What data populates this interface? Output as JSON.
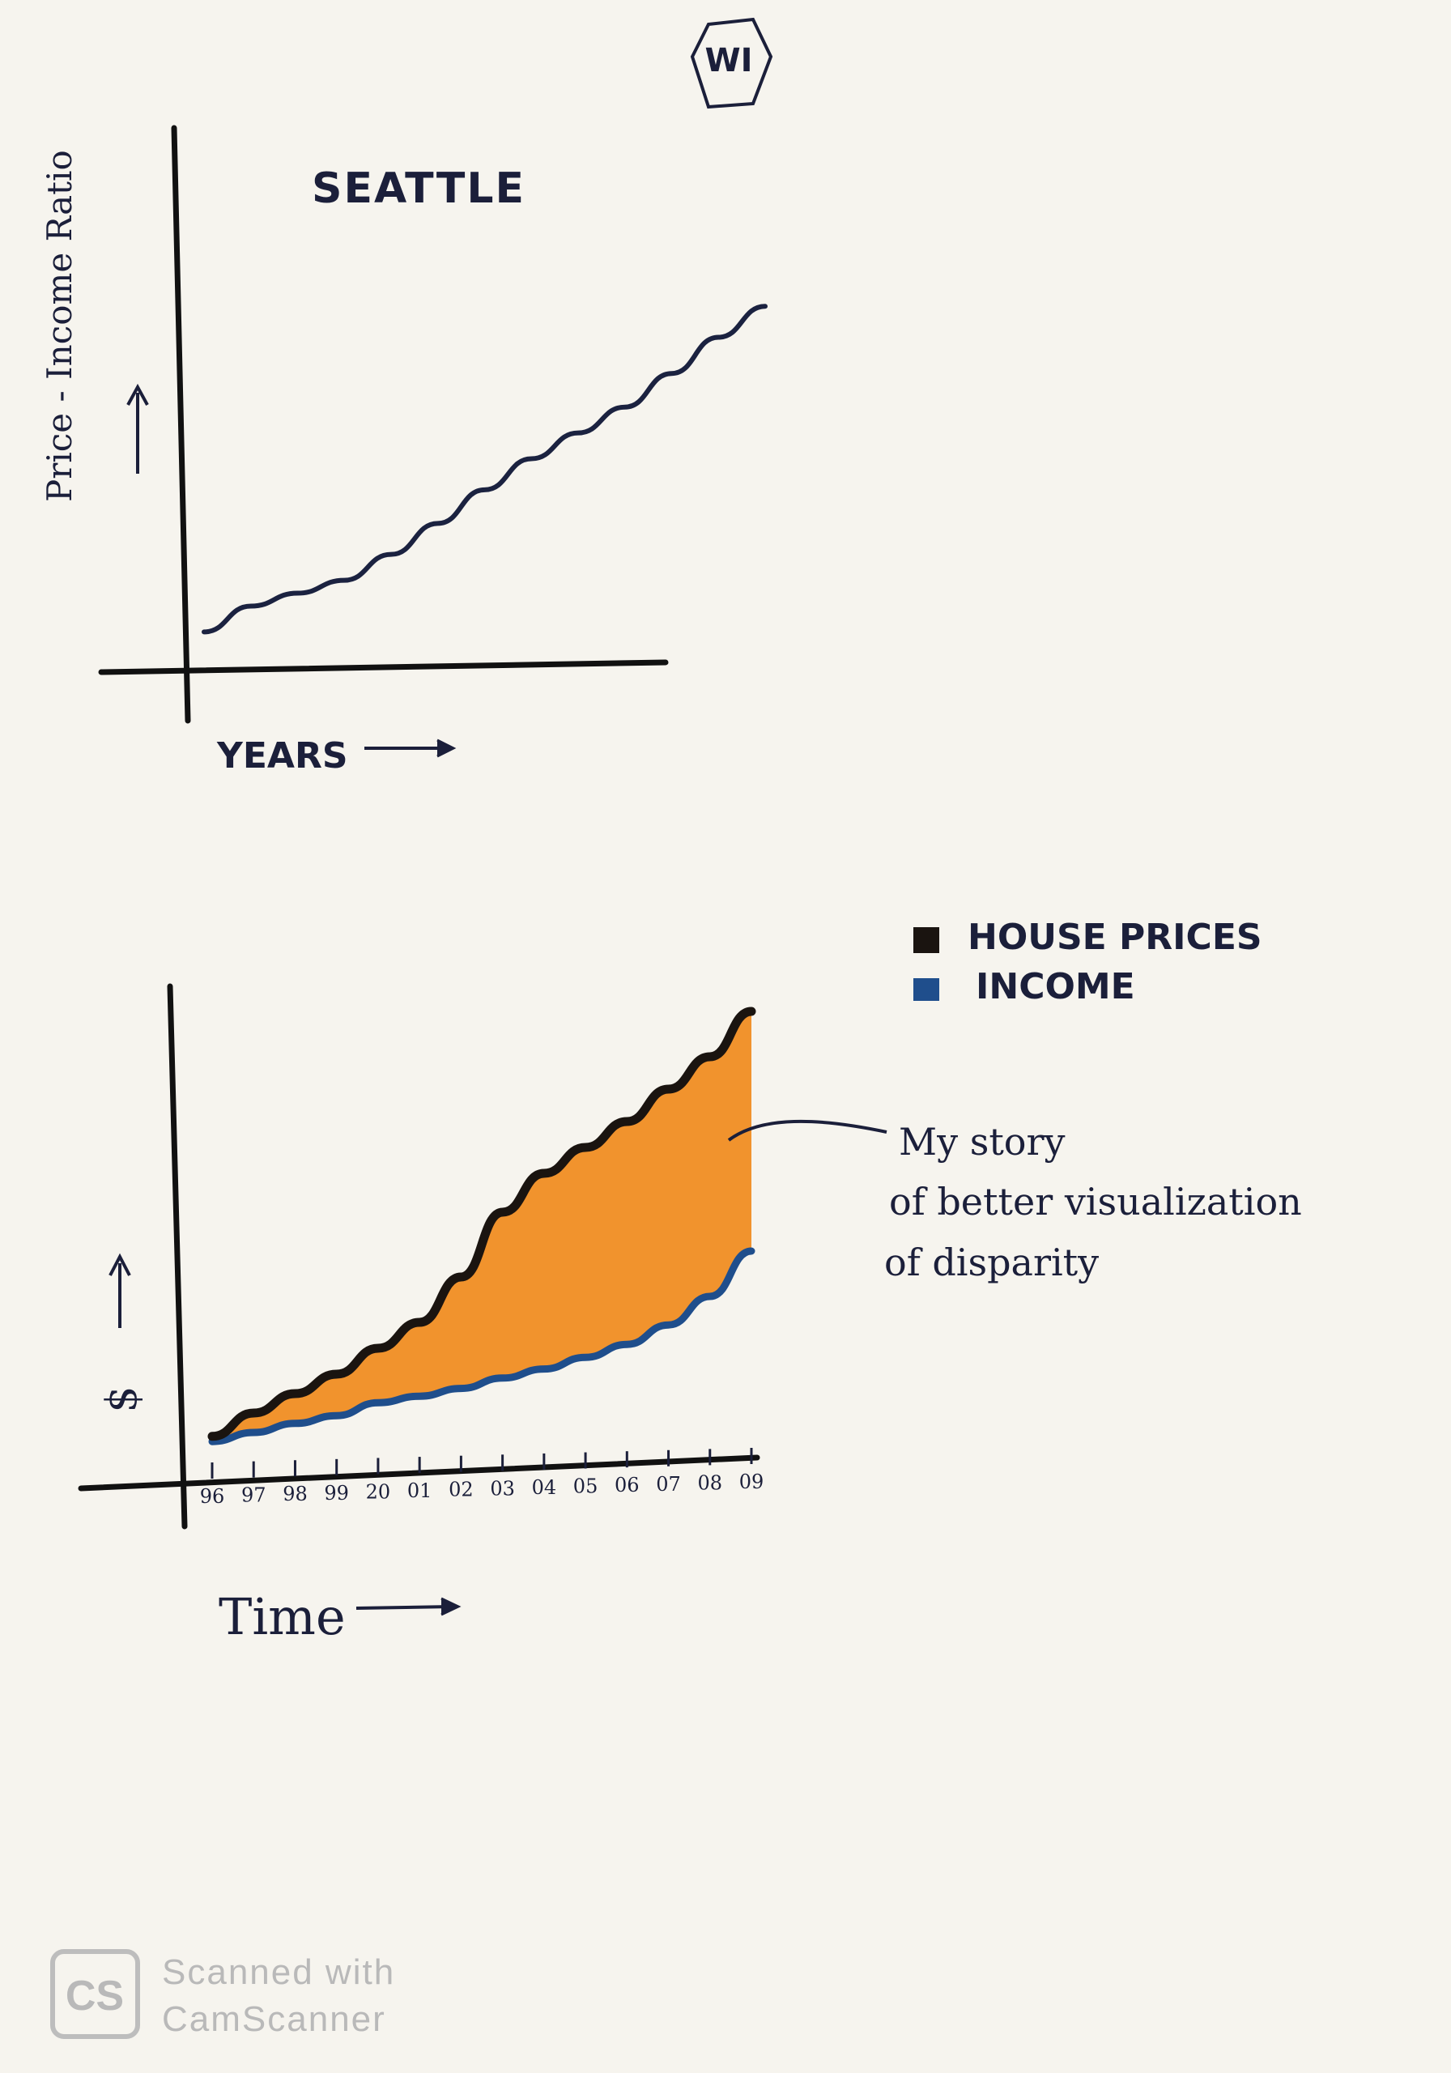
{
  "page": {
    "badge": "WI"
  },
  "chart_data": [
    {
      "type": "line",
      "title": "SEATTLE",
      "ylabel": "Price - Income Ratio",
      "xlabel": "YEARS",
      "x": [
        0,
        1,
        2,
        3,
        4,
        5,
        6,
        7,
        8,
        9,
        10,
        11,
        12
      ],
      "series": [
        {
          "name": "",
          "values": [
            0.3,
            1.3,
            1.8,
            2.3,
            3.3,
            4.5,
            5.8,
            7.0,
            8.0,
            9.0,
            10.3,
            11.7,
            12.9
          ]
        }
      ],
      "ylim": [
        0,
        13
      ],
      "grid": false,
      "colors": {
        "line": "#1b2240"
      }
    },
    {
      "type": "area",
      "title": "",
      "ylabel": "$",
      "xlabel": "Time",
      "categories": [
        "96",
        "97",
        "98",
        "99",
        "20",
        "01",
        "02",
        "03",
        "04",
        "05",
        "06",
        "07",
        "08",
        "09"
      ],
      "series": [
        {
          "name": "HOUSE PRICES",
          "color": "#1a1410",
          "values": [
            0.7,
            2.5,
            4.0,
            5.5,
            7.5,
            9.5,
            13.0,
            18.0,
            21.0,
            23.0,
            25.0,
            27.5,
            30.0,
            33.5
          ]
        },
        {
          "name": "INCOME",
          "color": "#1f4e8c",
          "values": [
            0.3,
            1.0,
            1.7,
            2.3,
            3.3,
            3.8,
            4.4,
            5.2,
            5.9,
            6.8,
            7.8,
            9.3,
            11.5,
            15.0
          ]
        }
      ],
      "fill_between": {
        "color": "#f08a1c"
      },
      "legend": "top-right",
      "ylim": [
        0,
        35
      ],
      "grid": false,
      "annotation": [
        "My story",
        "of better visualization",
        "of disparity"
      ]
    }
  ],
  "watermark": {
    "logo": "CS",
    "line1": "Scanned with",
    "line2": "CamScanner"
  }
}
